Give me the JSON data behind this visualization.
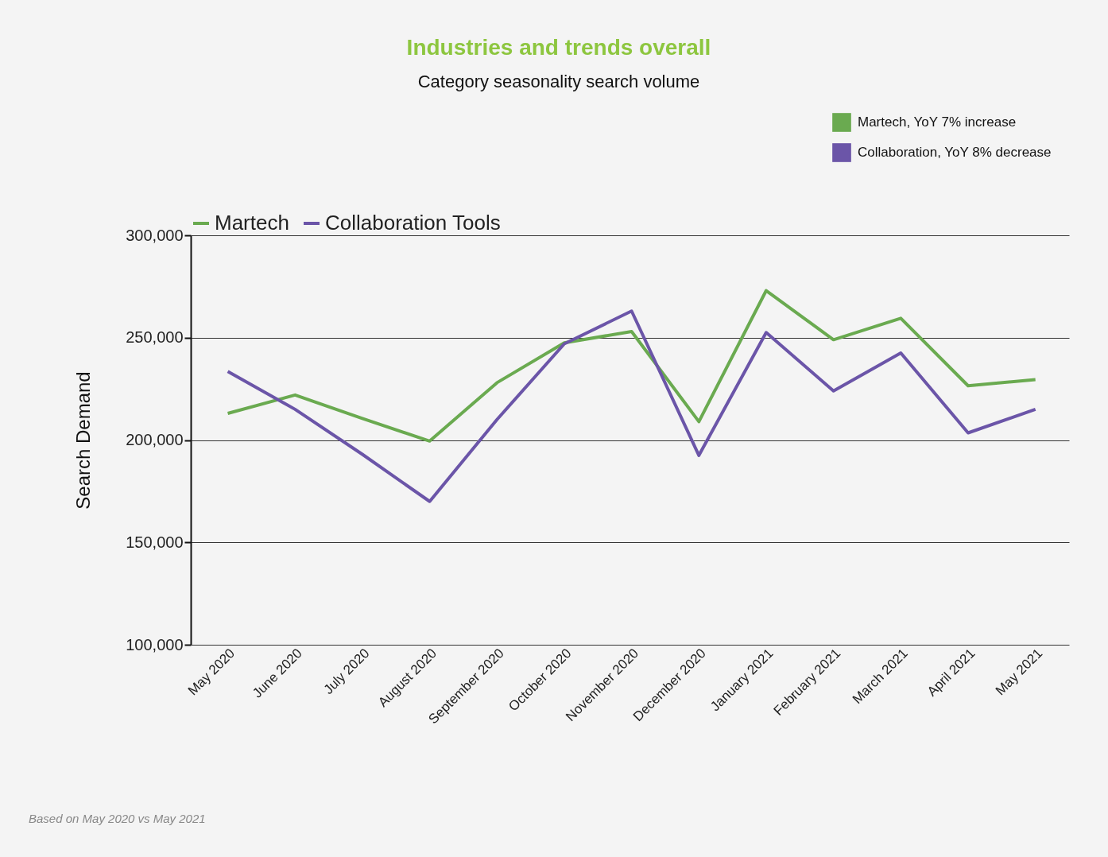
{
  "chart_data": {
    "type": "line",
    "title": "Industries and trends overall",
    "subtitle": "Category seasonality search volume",
    "ylabel": "Search Demand",
    "categories": [
      "May 2020",
      "June 2020",
      "July 2020",
      "August 2020",
      "September 2020",
      "October 2020",
      "November 2020",
      "December 2020",
      "January 2021",
      "February 2021",
      "March 2021",
      "April 2021",
      "May 2021"
    ],
    "series": [
      {
        "name": "Martech",
        "color": "#6aaa50",
        "values": [
          213000,
          222000,
          210500,
          199500,
          228000,
          247500,
          253000,
          209000,
          273000,
          249000,
          259500,
          226500,
          229500
        ]
      },
      {
        "name": "Collaboration Tools",
        "color": "#6b55a8",
        "values": [
          233500,
          215000,
          193000,
          170000,
          210000,
          247000,
          263000,
          192500,
          252500,
          224000,
          242500,
          203500,
          215000
        ]
      }
    ],
    "ylim": [
      100000,
      300000
    ],
    "yticks": [
      {
        "value": 100000,
        "label": "100,000"
      },
      {
        "value": 150000,
        "label": "150,000"
      },
      {
        "value": 200000,
        "label": "200,000"
      },
      {
        "value": 250000,
        "label": "250,000"
      },
      {
        "value": 300000,
        "label": "300,000"
      }
    ],
    "grid": "y",
    "legend": "top",
    "annotations": [
      "Martech, YoY 7% increase",
      "Collaboration, YoY 8% decrease",
      "Based on May 2020 vs May 2021"
    ]
  }
}
